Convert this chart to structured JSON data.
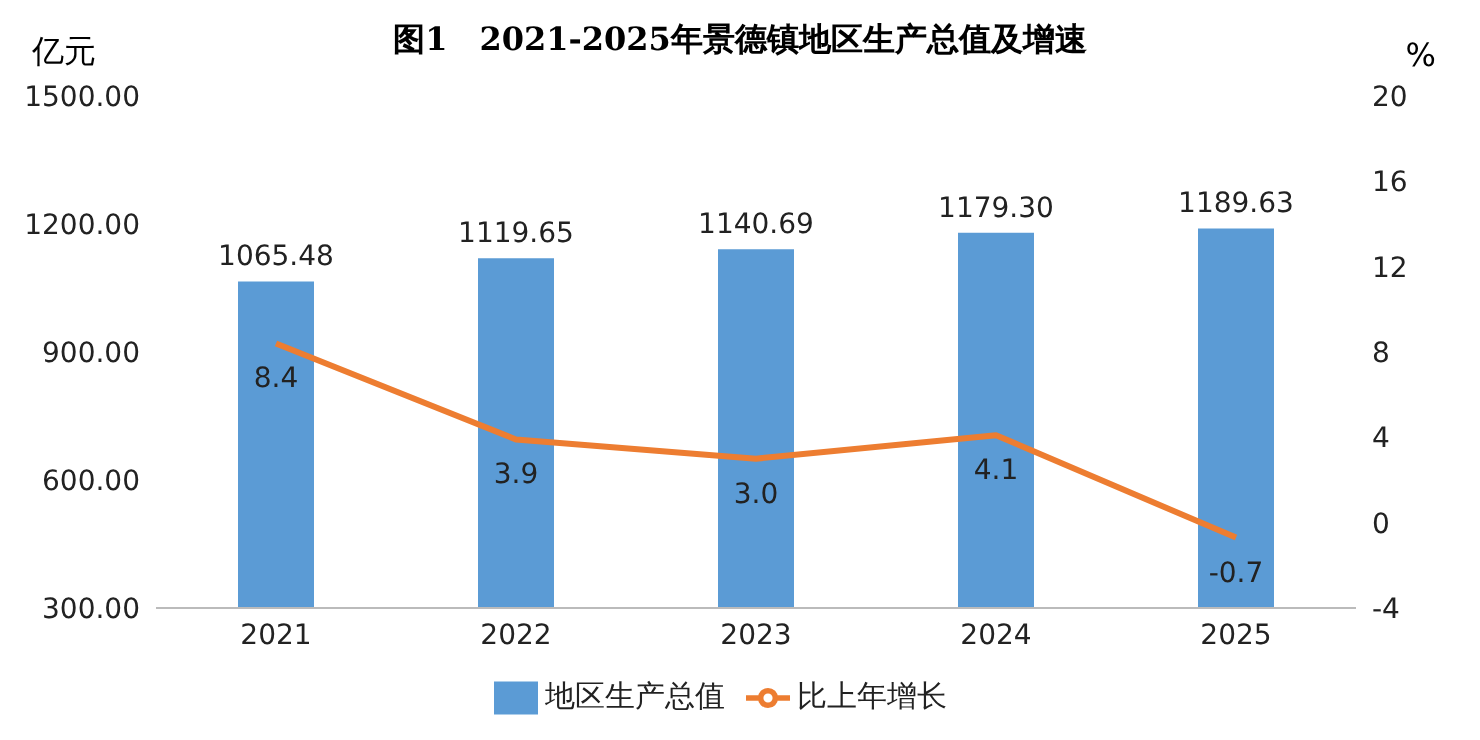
{
  "chart_data": {
    "type": "bar",
    "title": "图1　2021-2025年景德镇地区生产总值及增速",
    "ylabel": "亿元",
    "y2label": "%",
    "categories": [
      "2021",
      "2022",
      "2023",
      "2024",
      "2025"
    ],
    "series": [
      {
        "name": "地区生产总值",
        "color": "#5b9bd5",
        "values": [
          1065.48,
          1119.65,
          1140.69,
          1179.3,
          1189.63
        ],
        "value_labels": [
          "1065.48",
          "1119.65",
          "1140.69",
          "1179.30",
          "1189.63"
        ]
      },
      {
        "name": "比上年增长",
        "type": "line",
        "axis": "y2",
        "color": "#ed7d31",
        "values": [
          8.4,
          3.9,
          3.0,
          4.1,
          -0.7
        ],
        "value_labels": [
          "8.4",
          "3.9",
          "3.0",
          "4.1",
          "-0.7"
        ]
      }
    ],
    "ylim": [
      300,
      1500
    ],
    "yticks": [
      {
        "value": 300,
        "label": "300.00"
      },
      {
        "value": 600,
        "label": "600.00"
      },
      {
        "value": 900,
        "label": "900.00"
      },
      {
        "value": 1200,
        "label": "1200.00"
      },
      {
        "value": 1500,
        "label": "1500.00"
      }
    ],
    "y2lim": [
      -4,
      20
    ],
    "y2ticks": [
      -4,
      0,
      4,
      8,
      12,
      16,
      20
    ],
    "legend": "bottom",
    "marker": "none",
    "line_style": "solid"
  }
}
